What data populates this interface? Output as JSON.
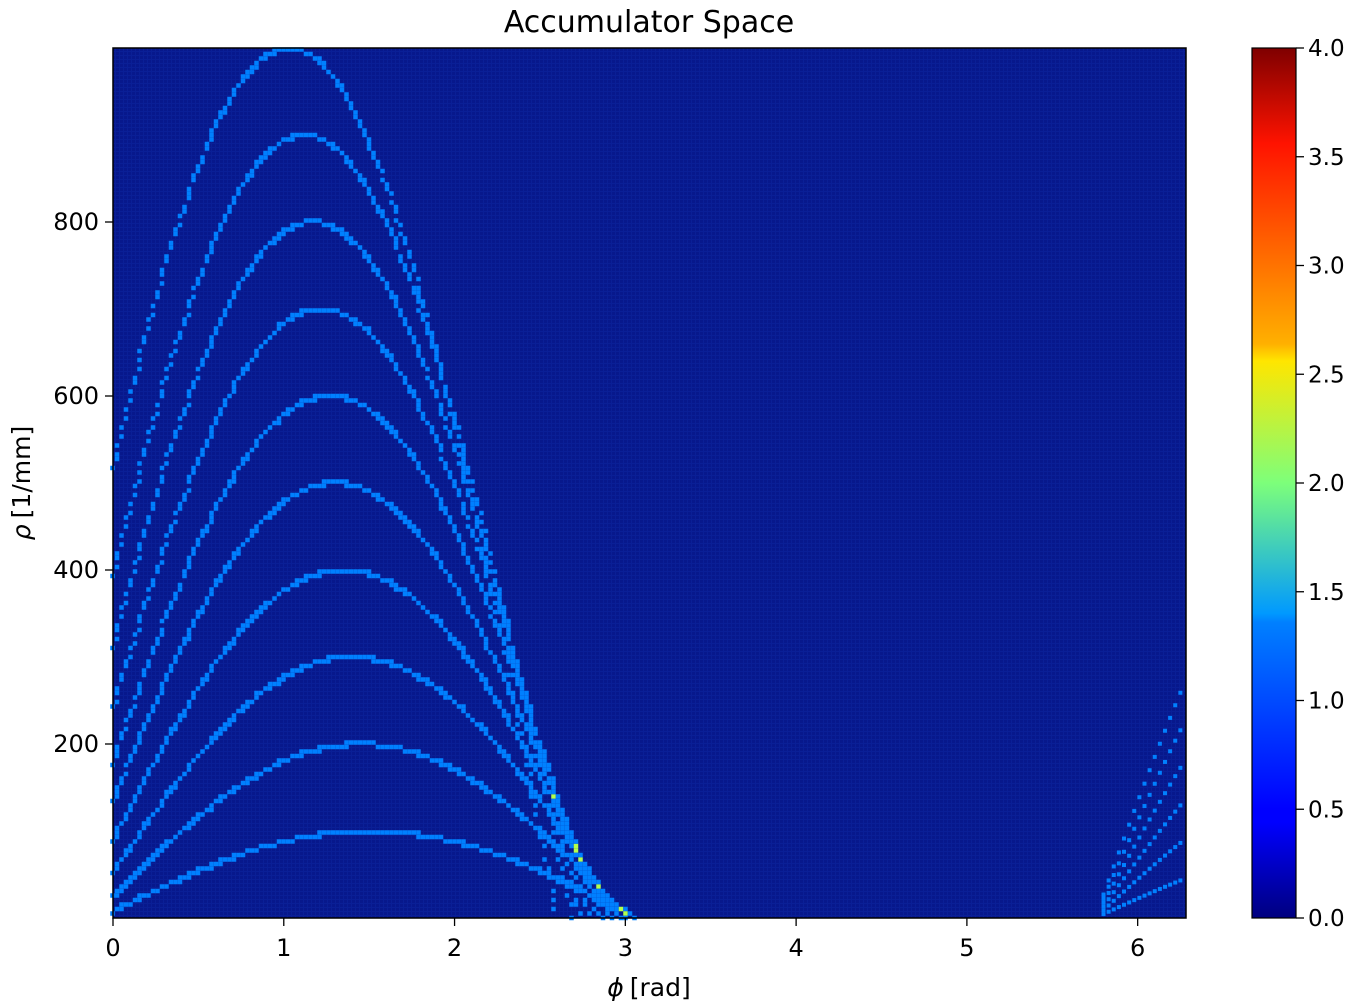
{
  "chart_data": {
    "type": "heatmap",
    "title": "Accumulator Space",
    "xlabel_symbol": "ϕ",
    "xlabel_unit": "[rad]",
    "ylabel_symbol": "ρ",
    "ylabel_unit": "[1/mm]",
    "xlim": [
      0,
      6.283
    ],
    "ylim": [
      0,
      1000
    ],
    "x_ticks": [
      0,
      1,
      2,
      3,
      4,
      5,
      6
    ],
    "x_tick_labels": [
      "0",
      "1",
      "2",
      "3",
      "4",
      "5",
      "6"
    ],
    "y_ticks": [
      200,
      400,
      600,
      800
    ],
    "y_tick_labels": [
      "200",
      "400",
      "600",
      "800"
    ],
    "colormap": "jet",
    "colorbar": {
      "range": [
        0.0,
        4.0
      ],
      "ticks": [
        0.0,
        0.5,
        1.0,
        1.5,
        2.0,
        2.5,
        3.0,
        3.5,
        4.0
      ],
      "tick_labels": [
        "0.0",
        "0.5",
        "1.0",
        "1.5",
        "2.0",
        "2.5",
        "3.0",
        "3.5",
        "4.0"
      ]
    },
    "background_value": 0,
    "grid": false,
    "description_of_curves": "Sinusoidal Hough-transform curves rho = A*sin(phi + offset)",
    "curves": [
      {
        "peak_rho": 100,
        "peak_phi": 1.5
      },
      {
        "peak_rho": 200,
        "peak_phi": 1.45
      },
      {
        "peak_rho": 300,
        "peak_phi": 1.4
      },
      {
        "peak_rho": 400,
        "peak_phi": 1.35
      },
      {
        "peak_rho": 500,
        "peak_phi": 1.3
      },
      {
        "peak_rho": 600,
        "peak_phi": 1.27
      },
      {
        "peak_rho": 700,
        "peak_phi": 1.22
      },
      {
        "peak_rho": 800,
        "peak_phi": 1.17
      },
      {
        "peak_rho": 900,
        "peak_phi": 1.12
      },
      {
        "peak_rho": 1000,
        "peak_phi": 1.03
      }
    ]
  }
}
